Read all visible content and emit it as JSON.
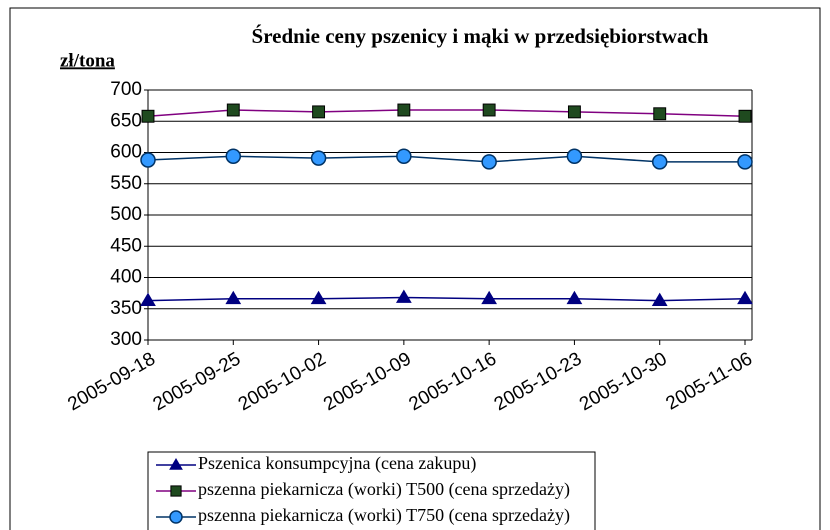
{
  "chart_data": {
    "type": "line",
    "title": "Średnie ceny pszenicy i mąki w przedsiębiorstwach",
    "y_label": "zł/tona",
    "x": [
      "2005-09-18",
      "2005-09-25",
      "2005-10-02",
      "2005-10-09",
      "2005-10-16",
      "2005-10-23",
      "2005-10-30",
      "2005-11-06"
    ],
    "ylim": [
      300,
      700
    ],
    "yticks": [
      300,
      350,
      400,
      450,
      500,
      550,
      600,
      650,
      700
    ],
    "grid": true,
    "series": [
      {
        "name": "Pszenica konsumpcyjna (cena zakupu)",
        "color": "#000080",
        "marker": "triangle",
        "marker_color": "#000080",
        "values": [
          363,
          366,
          366,
          368,
          366,
          366,
          363,
          366
        ]
      },
      {
        "name": "pszenna piekarnicza (worki) T500 (cena sprzedaży)",
        "color": "#800080",
        "marker": "square",
        "marker_color": "#1f4a1f",
        "values": [
          658,
          668,
          665,
          668,
          668,
          665,
          662,
          658
        ]
      },
      {
        "name": "pszenna piekarnicza (worki) T750 (cena sprzedaży)",
        "color": "#003366",
        "marker": "circle",
        "marker_color": "#3399ff",
        "values": [
          588,
          594,
          591,
          594,
          585,
          594,
          585,
          585
        ]
      }
    ]
  }
}
